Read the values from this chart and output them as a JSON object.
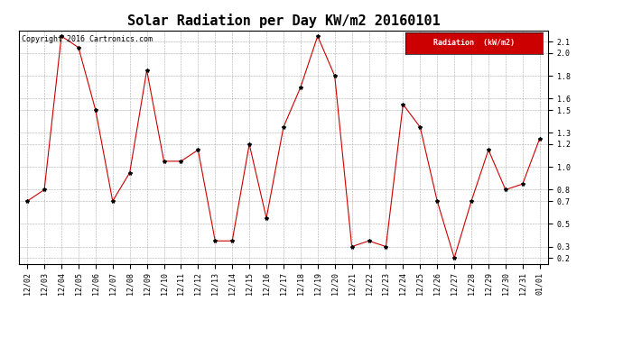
{
  "title": "Solar Radiation per Day KW/m2 20160101",
  "copyright": "Copyright 2016 Cartronics.com",
  "legend_label": "Radiation  (kW/m2)",
  "x_labels": [
    "12/02",
    "12/03",
    "12/04",
    "12/05",
    "12/06",
    "12/07",
    "12/08",
    "12/09",
    "12/10",
    "12/11",
    "12/12",
    "12/13",
    "12/14",
    "12/15",
    "12/16",
    "12/17",
    "12/18",
    "12/19",
    "12/20",
    "12/21",
    "12/22",
    "12/23",
    "12/24",
    "12/25",
    "12/26",
    "12/27",
    "12/28",
    "12/29",
    "12/30",
    "12/31",
    "01/01"
  ],
  "y_values": [
    0.7,
    0.8,
    2.15,
    2.05,
    1.5,
    0.7,
    0.95,
    1.85,
    1.05,
    1.05,
    1.15,
    0.35,
    0.35,
    1.2,
    0.55,
    1.35,
    1.7,
    2.15,
    1.8,
    0.3,
    0.35,
    0.3,
    1.55,
    1.35,
    0.7,
    0.2,
    0.7,
    1.15,
    0.8,
    0.85,
    1.25
  ],
  "line_color": "#cc0000",
  "marker": "*",
  "marker_color": "#000000",
  "marker_size": 3,
  "background_color": "#ffffff",
  "plot_bg_color": "#ffffff",
  "grid_color": "#aaaaaa",
  "ylim": [
    0.15,
    2.2
  ],
  "yticks": [
    0.2,
    0.3,
    0.5,
    0.7,
    0.8,
    1.0,
    1.2,
    1.3,
    1.5,
    1.6,
    1.8,
    2.0,
    2.1
  ],
  "legend_bg": "#cc0000",
  "legend_fg": "#ffffff",
  "title_fontsize": 11,
  "tick_fontsize": 6,
  "copyright_fontsize": 6,
  "legend_fontsize": 6
}
